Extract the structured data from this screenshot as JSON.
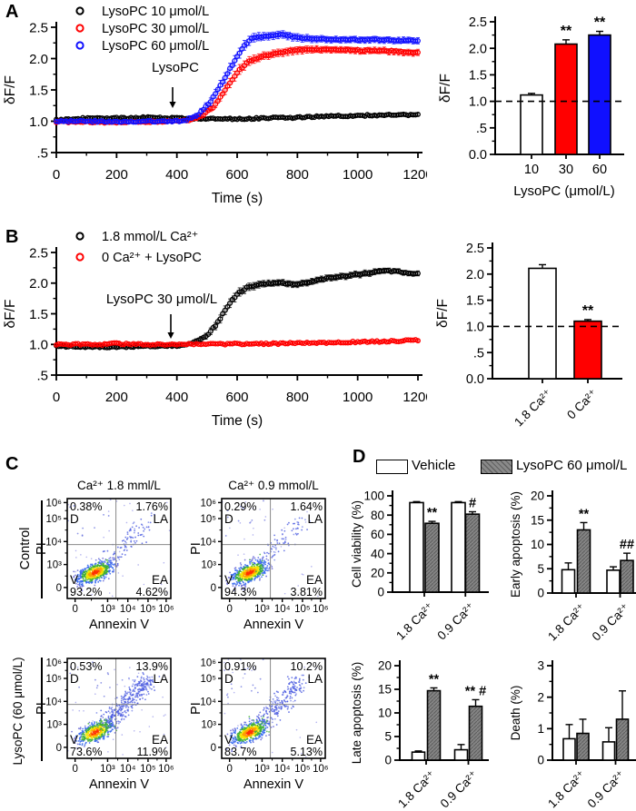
{
  "panel_labels": {
    "a": "A",
    "b": "B",
    "c": "C",
    "d": "D"
  },
  "colors": {
    "black": "#000000",
    "red": "#ff0000",
    "blue": "#1010ff",
    "gray_bar": "#858585",
    "white": "#ffffff"
  },
  "panel_c": {
    "row_labels": [
      "Control",
      "LysoPC (60 μmol/L)"
    ]
  },
  "panel_d_legend": {
    "items": [
      {
        "label": "Vehicle",
        "fill": "#ffffff"
      },
      {
        "label": "LysoPC 60 μmol/L",
        "fill": "#858585",
        "hatch": true
      }
    ]
  },
  "chart_data": [
    {
      "id": "a_timecourse",
      "type": "timecourse",
      "xlabel": "Time (s)",
      "ylabel": "δF/F",
      "xlim": [
        0,
        1200
      ],
      "ylim": [
        0.5,
        2.5
      ],
      "xticks": {
        "values": [
          0,
          200,
          400,
          600,
          800,
          1000,
          1200
        ],
        "labels": [
          "0",
          "200",
          "400",
          "600",
          "800",
          "1000",
          "1200"
        ]
      },
      "yticks": {
        "values": [
          0.5,
          1.0,
          1.5,
          2.0,
          2.5
        ],
        "labels": [
          ".5",
          "1.0",
          "1.5",
          "2.0",
          "2.5"
        ]
      },
      "annotation": "LysoPC",
      "series": [
        {
          "name": "LysoPC 10 μmol/L",
          "color": "#000000",
          "points": [
            [
              0,
              1.02,
              0.02
            ],
            [
              100,
              1.05,
              0.02
            ],
            [
              200,
              1.05,
              0.02
            ],
            [
              300,
              1.06,
              0.02
            ],
            [
              400,
              1.05,
              0.02
            ],
            [
              500,
              1.04,
              0.02
            ],
            [
              600,
              1.04,
              0.02
            ],
            [
              700,
              1.05,
              0.02
            ],
            [
              800,
              1.06,
              0.02
            ],
            [
              900,
              1.08,
              0.025
            ],
            [
              1000,
              1.09,
              0.025
            ],
            [
              1100,
              1.1,
              0.025
            ],
            [
              1200,
              1.1,
              0.025
            ]
          ]
        },
        {
          "name": "LysoPC 30 μmol/L",
          "color": "#ff0000",
          "points": [
            [
              0,
              0.99,
              0.02
            ],
            [
              100,
              0.99,
              0.02
            ],
            [
              200,
              0.98,
              0.02
            ],
            [
              300,
              0.99,
              0.02
            ],
            [
              400,
              1.0,
              0.02
            ],
            [
              440,
              1.02,
              0.025
            ],
            [
              480,
              1.08,
              0.03
            ],
            [
              520,
              1.22,
              0.05
            ],
            [
              560,
              1.5,
              0.07
            ],
            [
              600,
              1.78,
              0.08
            ],
            [
              640,
              1.97,
              0.07
            ],
            [
              680,
              2.03,
              0.06
            ],
            [
              720,
              2.07,
              0.06
            ],
            [
              760,
              2.11,
              0.06
            ],
            [
              800,
              2.14,
              0.06
            ],
            [
              900,
              2.15,
              0.05
            ],
            [
              1000,
              2.13,
              0.05
            ],
            [
              1100,
              2.12,
              0.05
            ],
            [
              1200,
              2.09,
              0.05
            ]
          ]
        },
        {
          "name": "LysoPC 60 μmol/L",
          "color": "#1010ff",
          "points": [
            [
              0,
              1.0,
              0.02
            ],
            [
              100,
              1.0,
              0.02
            ],
            [
              200,
              0.99,
              0.02
            ],
            [
              300,
              1.0,
              0.02
            ],
            [
              400,
              1.0,
              0.02
            ],
            [
              430,
              1.02,
              0.03
            ],
            [
              470,
              1.1,
              0.04
            ],
            [
              510,
              1.3,
              0.06
            ],
            [
              550,
              1.62,
              0.08
            ],
            [
              590,
              1.95,
              0.08
            ],
            [
              620,
              2.18,
              0.08
            ],
            [
              650,
              2.33,
              0.07
            ],
            [
              700,
              2.36,
              0.06
            ],
            [
              750,
              2.39,
              0.06
            ],
            [
              800,
              2.33,
              0.06
            ],
            [
              900,
              2.31,
              0.05
            ],
            [
              1000,
              2.3,
              0.05
            ],
            [
              1100,
              2.3,
              0.05
            ],
            [
              1200,
              2.28,
              0.05
            ]
          ]
        }
      ]
    },
    {
      "id": "a_bar",
      "type": "bar",
      "ylabel": "δF/F",
      "xlabel": "LysoPC (μmol/L)",
      "ylim": [
        0,
        2.5
      ],
      "yticks": {
        "values": [
          0,
          0.5,
          1.0,
          1.5,
          2.0,
          2.5
        ],
        "labels": [
          "0.0",
          ".5",
          "1.0",
          "1.5",
          "2.0",
          "2.5"
        ]
      },
      "categories": [
        "10",
        "30",
        "60"
      ],
      "series": [
        {
          "name": "",
          "values": [
            1.12,
            2.08,
            2.25
          ],
          "errors": [
            0.03,
            0.08,
            0.07
          ]
        }
      ],
      "bar_colors": [
        "#ffffff",
        "#ff0000",
        "#1010ff"
      ],
      "dash_y": 1.0,
      "sig": [
        {
          "series": 0,
          "cat": 1,
          "text": "**"
        },
        {
          "series": 0,
          "cat": 2,
          "text": "**"
        }
      ]
    },
    {
      "id": "b_timecourse",
      "type": "timecourse",
      "xlabel": "Time (s)",
      "ylabel": "δF/F",
      "xlim": [
        0,
        1200
      ],
      "ylim": [
        0.5,
        2.5
      ],
      "xticks": {
        "values": [
          0,
          200,
          400,
          600,
          800,
          1000,
          1200
        ],
        "labels": [
          "0",
          "200",
          "400",
          "600",
          "800",
          "1000",
          "1200"
        ]
      },
      "yticks": {
        "values": [
          0.5,
          1.0,
          1.5,
          2.0,
          2.5
        ],
        "labels": [
          ".5",
          "1.0",
          "1.5",
          "2.0",
          "2.5"
        ]
      },
      "annotation": "LysoPC 30 μmol/L",
      "series": [
        {
          "name": "1.8 mmol/L Ca²⁺",
          "color": "#000000",
          "points": [
            [
              0,
              0.97,
              0.02
            ],
            [
              100,
              0.96,
              0.02
            ],
            [
              200,
              0.96,
              0.02
            ],
            [
              300,
              0.97,
              0.02
            ],
            [
              400,
              0.98,
              0.02
            ],
            [
              440,
              1.01,
              0.03
            ],
            [
              470,
              1.06,
              0.04
            ],
            [
              500,
              1.15,
              0.05
            ],
            [
              530,
              1.32,
              0.06
            ],
            [
              560,
              1.55,
              0.07
            ],
            [
              580,
              1.7,
              0.07
            ],
            [
              600,
              1.82,
              0.07
            ],
            [
              630,
              1.92,
              0.06
            ],
            [
              660,
              1.96,
              0.06
            ],
            [
              700,
              1.99,
              0.05
            ],
            [
              750,
              2.0,
              0.05
            ],
            [
              800,
              1.98,
              0.05
            ],
            [
              850,
              2.02,
              0.05
            ],
            [
              900,
              2.08,
              0.05
            ],
            [
              950,
              2.11,
              0.05
            ],
            [
              1000,
              2.14,
              0.05
            ],
            [
              1050,
              2.17,
              0.05
            ],
            [
              1100,
              2.2,
              0.04
            ],
            [
              1150,
              2.18,
              0.04
            ],
            [
              1200,
              2.15,
              0.04
            ]
          ]
        },
        {
          "name": "0 Ca²⁺ + LysoPC",
          "color": "#ff0000",
          "points": [
            [
              0,
              1.0,
              0.015
            ],
            [
              100,
              1.0,
              0.015
            ],
            [
              170,
              1.0,
              0.015
            ],
            [
              190,
              1.04,
              0.02
            ],
            [
              210,
              1.01,
              0.015
            ],
            [
              300,
              1.0,
              0.015
            ],
            [
              400,
              1.0,
              0.015
            ],
            [
              500,
              1.0,
              0.015
            ],
            [
              600,
              1.01,
              0.015
            ],
            [
              700,
              1.01,
              0.015
            ],
            [
              800,
              1.02,
              0.015
            ],
            [
              900,
              1.03,
              0.015
            ],
            [
              1000,
              1.04,
              0.015
            ],
            [
              1100,
              1.05,
              0.015
            ],
            [
              1200,
              1.07,
              0.015
            ]
          ]
        }
      ]
    },
    {
      "id": "b_bar",
      "type": "bar",
      "ylabel": "δF/F",
      "xlabel": "",
      "ylim": [
        0,
        2.5
      ],
      "yticks": {
        "values": [
          0,
          0.5,
          1.0,
          1.5,
          2.0,
          2.5
        ],
        "labels": [
          "0.0",
          ".5",
          "1.0",
          "1.5",
          "2.0",
          "2.5"
        ]
      },
      "categories": [
        "1.8 Ca²⁺",
        "0 Ca²⁺"
      ],
      "series": [
        {
          "name": "",
          "values": [
            2.11,
            1.1
          ],
          "errors": [
            0.07,
            0.03
          ]
        }
      ],
      "bar_colors": [
        "#ffffff",
        "#ff0000"
      ],
      "dash_y": 1.0,
      "sig": [
        {
          "series": 0,
          "cat": 1,
          "text": "**"
        }
      ]
    },
    {
      "id": "flow_control_1_8",
      "type": "flow",
      "title": "Ca²⁺ 1.8 mml/L",
      "xlabel": "Annexin V",
      "ylabel": "PI",
      "xticks": [
        "0",
        "10³",
        "10⁴",
        "10⁵",
        "10⁶"
      ],
      "yticks": [
        "10⁶",
        "10⁵",
        "10⁴",
        "10³",
        "0"
      ],
      "quadrants": {
        "D": "0.38%",
        "LA": "1.76%",
        "V": "93.2%",
        "EA": "4.62%"
      }
    },
    {
      "id": "flow_control_0_9",
      "type": "flow",
      "title": "Ca²⁺ 0.9 mmol/L",
      "xlabel": "Annexin V",
      "ylabel": "PI",
      "xticks": [
        "0",
        "10³",
        "10⁴",
        "10⁵",
        "10⁶"
      ],
      "yticks": [
        "10⁶",
        "10⁵",
        "10⁴",
        "10³",
        "0"
      ],
      "quadrants": {
        "D": "0.29%",
        "LA": "1.64%",
        "V": "94.3%",
        "EA": "3.81%"
      }
    },
    {
      "id": "flow_lysopc_1_8",
      "type": "flow",
      "title": "",
      "xlabel": "Annexin V",
      "ylabel": "PI",
      "xticks": [
        "0",
        "10³",
        "10⁴",
        "10⁵",
        "10⁶"
      ],
      "yticks": [
        "10⁶",
        "10⁵",
        "10⁴",
        "10³",
        "0"
      ],
      "quadrants": {
        "D": "0.53%",
        "LA": "13.9%",
        "V": "73.6%",
        "EA": "11.9%"
      }
    },
    {
      "id": "flow_lysopc_0_9",
      "type": "flow",
      "title": "",
      "xlabel": "Annexin V",
      "ylabel": "PI",
      "xticks": [
        "0",
        "10³",
        "10⁴",
        "10⁵",
        "10⁶"
      ],
      "yticks": [
        "10⁶",
        "10⁵",
        "10⁴",
        "10³",
        "0"
      ],
      "quadrants": {
        "D": "0.91%",
        "LA": "10.2%",
        "V": "83.7%",
        "EA": "5.13%"
      }
    },
    {
      "id": "cell_viability",
      "type": "bar",
      "ylabel": "Cell viability (%)",
      "xlabel": "",
      "ylim": [
        0,
        100
      ],
      "yticks": {
        "values": [
          0,
          20,
          40,
          60,
          80,
          100
        ],
        "labels": [
          "0",
          "20",
          "40",
          "60",
          "80",
          "100"
        ]
      },
      "categories": [
        "1.8 Ca²⁺",
        "0.9 Ca²⁺"
      ],
      "series": [
        {
          "name": "Vehicle",
          "values": [
            93,
            93
          ],
          "errors": [
            1,
            1
          ],
          "fill": "#ffffff"
        },
        {
          "name": "LysoPC 60 μmol/L",
          "values": [
            71.5,
            81
          ],
          "errors": [
            2,
            2.5
          ],
          "hatch": true
        }
      ],
      "sig": [
        {
          "series": 1,
          "cat": 0,
          "text": "**"
        },
        {
          "series": 1,
          "cat": 1,
          "text": "#"
        }
      ]
    },
    {
      "id": "early_apoptosis",
      "type": "bar",
      "ylabel": "Early apoptosis (%)",
      "xlabel": "",
      "ylim": [
        0,
        20
      ],
      "yticks": {
        "values": [
          0,
          5,
          10,
          15,
          20
        ],
        "labels": [
          "0",
          "5",
          "10",
          "15",
          "20"
        ]
      },
      "categories": [
        "1.8 Ca²⁺",
        "0.9 Ca²⁺"
      ],
      "series": [
        {
          "name": "Vehicle",
          "values": [
            4.8,
            4.7
          ],
          "errors": [
            1.4,
            0.7
          ],
          "fill": "#ffffff"
        },
        {
          "name": "LysoPC 60 μmol/L",
          "values": [
            13.0,
            6.7
          ],
          "errors": [
            1.5,
            1.5
          ],
          "hatch": true
        }
      ],
      "sig": [
        {
          "series": 1,
          "cat": 0,
          "text": "**"
        },
        {
          "series": 1,
          "cat": 1,
          "text": "##"
        }
      ]
    },
    {
      "id": "late_apoptosis",
      "type": "bar",
      "ylabel": "Late apoptosis (%)",
      "xlabel": "",
      "ylim": [
        0,
        20
      ],
      "yticks": {
        "values": [
          0,
          5,
          10,
          15,
          20
        ],
        "labels": [
          "0",
          "5",
          "10",
          "15",
          "20"
        ]
      },
      "categories": [
        "1.8 Ca²⁺",
        "0.9 Ca²⁺"
      ],
      "series": [
        {
          "name": "Vehicle",
          "values": [
            1.7,
            2.2
          ],
          "errors": [
            0.25,
            1.1
          ],
          "fill": "#ffffff"
        },
        {
          "name": "LysoPC 60 μmol/L",
          "values": [
            14.7,
            11.4
          ],
          "errors": [
            0.6,
            1.4
          ],
          "hatch": true
        }
      ],
      "sig": [
        {
          "series": 1,
          "cat": 0,
          "text": "**"
        },
        {
          "series": 1,
          "cat": 1,
          "text": "** #"
        }
      ]
    },
    {
      "id": "death",
      "type": "bar",
      "ylabel": "Death (%)",
      "xlabel": "",
      "ylim": [
        0,
        3
      ],
      "yticks": {
        "values": [
          0,
          1,
          2,
          3
        ],
        "labels": [
          "0",
          "1",
          "2",
          "3"
        ]
      },
      "categories": [
        "1.8 Ca²⁺",
        "0.9 Ca²⁺"
      ],
      "series": [
        {
          "name": "Vehicle",
          "values": [
            0.68,
            0.58
          ],
          "errors": [
            0.45,
            0.45
          ],
          "fill": "#ffffff"
        },
        {
          "name": "LysoPC 60 μmol/L",
          "values": [
            0.85,
            1.3
          ],
          "errors": [
            0.45,
            0.9
          ],
          "hatch": true
        }
      ],
      "sig": []
    }
  ]
}
